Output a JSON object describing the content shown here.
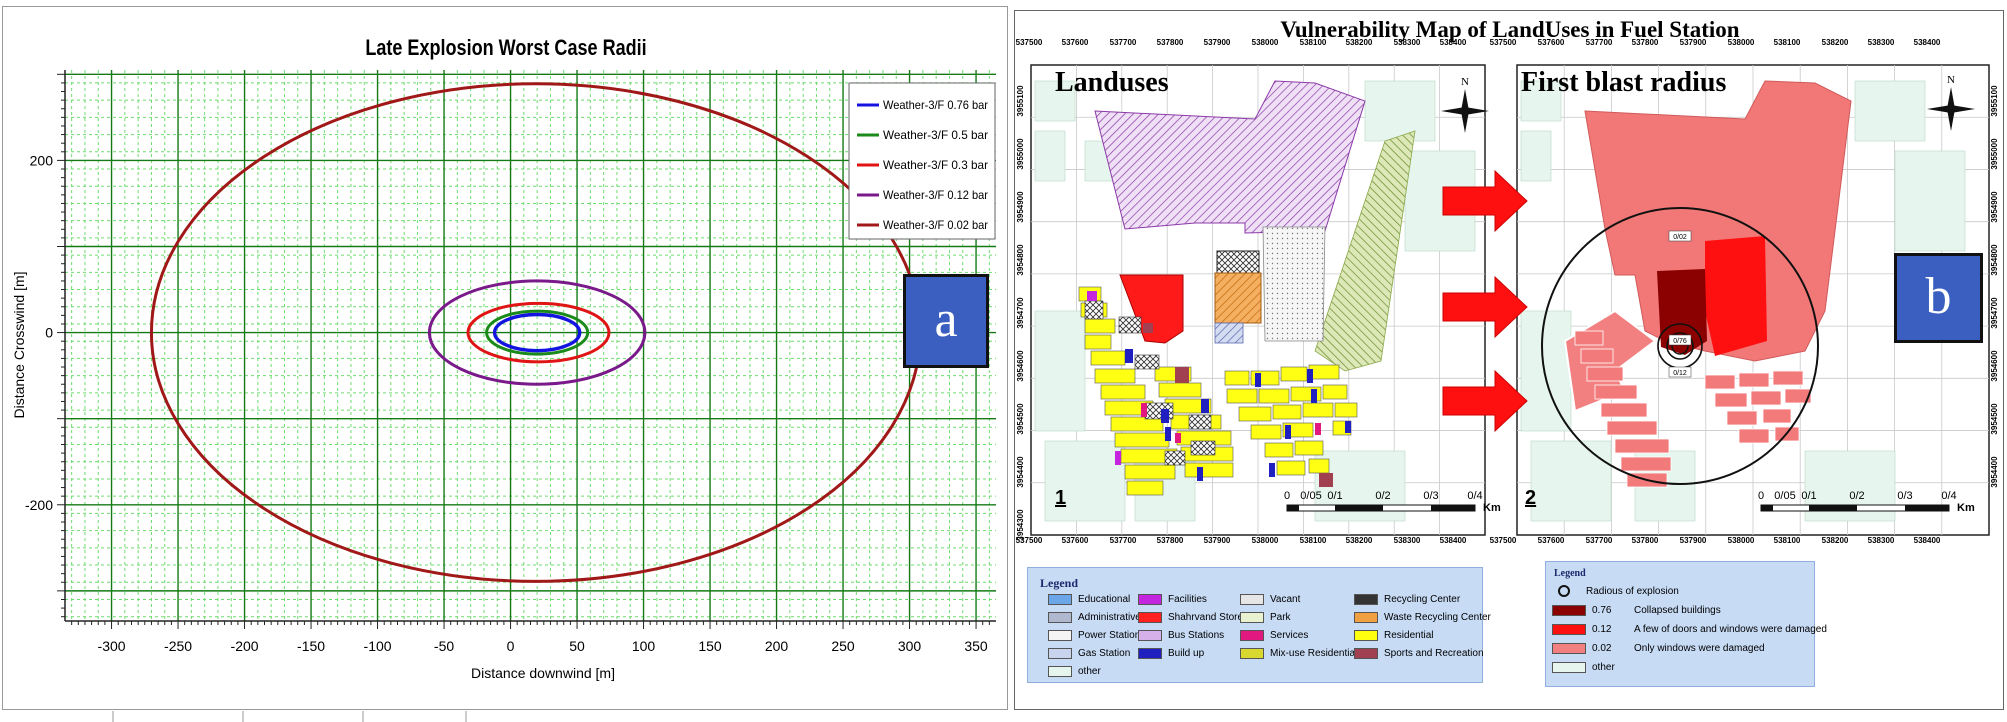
{
  "left": {
    "panel_label": "a",
    "chart_data": {
      "type": "line",
      "title": "Late Explosion Worst Case Radii",
      "xlabel": "Distance downwind [m]",
      "ylabel": "Distance Crosswind [m]",
      "xlim": [
        -335,
        365
      ],
      "ylim": [
        -335,
        305
      ],
      "x_ticks": [
        -300,
        -250,
        -200,
        -150,
        -100,
        -50,
        0,
        50,
        100,
        150,
        200,
        250,
        300,
        350
      ],
      "y_ticks": [
        200,
        0,
        -200
      ],
      "grid": true,
      "legend_position": "top-right",
      "series": [
        {
          "name": "Weather-3/F 0.76 bar",
          "color": "#1414e0",
          "center_x": 20,
          "semi_x": 32,
          "semi_y": 21
        },
        {
          "name": "Weather-3/F 0.5 bar",
          "color": "#1a8a1a",
          "center_x": 20,
          "semi_x": 38,
          "semi_y": 25
        },
        {
          "name": "Weather-3/F 0.3 bar",
          "color": "#e01414",
          "center_x": 21,
          "semi_x": 53,
          "semi_y": 34
        },
        {
          "name": "Weather-3/F 0.12 bar",
          "color": "#7a1a8a",
          "center_x": 20,
          "semi_x": 81,
          "semi_y": 60
        },
        {
          "name": "Weather-3/F 0.02 bar",
          "color": "#a01818",
          "center_x": 19,
          "semi_x": 289,
          "semi_y": 289
        }
      ]
    }
  },
  "right": {
    "title": "Vulnerability Map of LandUses in Fuel Station",
    "panel_label": "b",
    "x_coords": [
      "537500",
      "537600",
      "537700",
      "537800",
      "537900",
      "538000",
      "538100",
      "538200",
      "538300",
      "538400"
    ],
    "y_coords_left": [
      "3955100",
      "3955000",
      "3954900",
      "3954800",
      "3954700",
      "3954600",
      "3954500",
      "3954400",
      "3954300"
    ],
    "y_coords_right": [
      "3955100",
      "3955000",
      "3954900",
      "3954800",
      "3954700",
      "3954600",
      "3954500",
      "3954400"
    ],
    "map1": {
      "heading": "Landuses",
      "number": "1"
    },
    "map2": {
      "heading": "First blast radius",
      "number": "2"
    },
    "north": "N",
    "scalebar": {
      "labels": [
        "0",
        "0/05",
        "0/1",
        "0/2",
        "0/3",
        "0/4"
      ],
      "unit": "Km"
    },
    "ring_labels": [
      "0/02",
      "0/76",
      "0/12"
    ],
    "legend1": {
      "title": "Legend",
      "items": [
        {
          "label": "Educational",
          "color": "#6aa6e8"
        },
        {
          "label": "Facilities",
          "color": "#c426e0"
        },
        {
          "label": "Vacant",
          "color": "#e6e6e6"
        },
        {
          "label": "Recycling Center",
          "color": "#333333"
        },
        {
          "label": "Administrative",
          "color": "#b0b8d0"
        },
        {
          "label": "Shahrvand Store",
          "color": "#ff2020"
        },
        {
          "label": "Park",
          "color": "#e8f2d0"
        },
        {
          "label": "Waste Recycling Center",
          "color": "#f0a040"
        },
        {
          "label": "Power Station",
          "color": "#f4f4f4"
        },
        {
          "label": "Bus Stations",
          "color": "#d6b0e8"
        },
        {
          "label": "Services",
          "color": "#e01880"
        },
        {
          "label": "Residential",
          "color": "#ffff10"
        },
        {
          "label": "Gas Station",
          "color": "#c8d4ee"
        },
        {
          "label": "Build up",
          "color": "#2020c0"
        },
        {
          "label": "Mix-use Residential",
          "color": "#d8d830"
        },
        {
          "label": "Sports and Recreation",
          "color": "#a04050"
        },
        {
          "label": "other",
          "color": "#e6f6ee"
        }
      ]
    },
    "legend2": {
      "title": "Legend",
      "items": [
        {
          "label": "Radious of explosion",
          "color": "none"
        },
        {
          "label": "0.76",
          "desc": "Collapsed buildings",
          "color": "#8b0000"
        },
        {
          "label": "0.12",
          "desc": "A few of doors and windows were damaged",
          "color": "#ff1010"
        },
        {
          "label": "0.02",
          "desc": "Only windows were damaged",
          "color": "#f28080"
        },
        {
          "label": "other",
          "color": "#e6f6ee"
        }
      ]
    }
  }
}
